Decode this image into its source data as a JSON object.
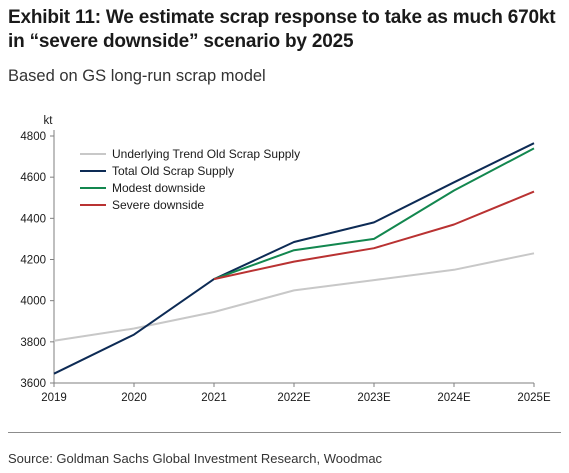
{
  "title": "Exhibit 11: We estimate scrap response to take as much 670kt in “severe downside” scenario by 2025",
  "subtitle": "Based on GS long-run scrap model",
  "source": "Source: Goldman Sachs Global Investment Research, Woodmac",
  "chart_data": {
    "type": "line",
    "ylabel": "kt",
    "ylim": [
      3600,
      4800
    ],
    "yticks": [
      3600,
      3800,
      4000,
      4200,
      4400,
      4600,
      4800
    ],
    "categories": [
      "2019",
      "2020",
      "2021",
      "2022E",
      "2023E",
      "2024E",
      "2025E"
    ],
    "grid": false,
    "legend_position": "top-left",
    "series": [
      {
        "name": "Underlying Trend Old Scrap Supply",
        "color": "#c8c8c8",
        "values": [
          3805,
          3865,
          3945,
          4050,
          4100,
          4150,
          4230
        ]
      },
      {
        "name": "Total Old Scrap Supply",
        "color": "#0d2b55",
        "values": [
          3645,
          3835,
          4105,
          4285,
          4380,
          4575,
          4765
        ]
      },
      {
        "name": "Modest downside",
        "color": "#13874f",
        "values": [
          null,
          null,
          4105,
          4245,
          4300,
          4535,
          4740
        ]
      },
      {
        "name": "Severe downside",
        "color": "#b93232",
        "values": [
          null,
          null,
          4105,
          4190,
          4255,
          4370,
          4530
        ]
      }
    ]
  }
}
